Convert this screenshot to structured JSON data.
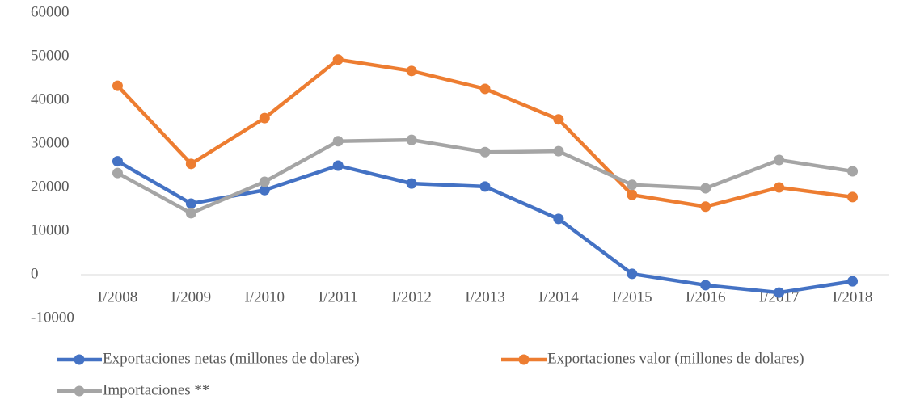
{
  "chart_data": {
    "type": "line",
    "categories": [
      "I/2008",
      "I/2009",
      "I/2010",
      "I/2011",
      "I/2012",
      "I/2013",
      "I/2014",
      "I/2015",
      "I/2016",
      "I/2017",
      "I/2018"
    ],
    "series": [
      {
        "name": "Exportaciones netas (millones de dolares)",
        "color": "#4472c4",
        "values": [
          26000,
          16300,
          19400,
          25000,
          20900,
          20200,
          12800,
          200,
          -2400,
          -4100,
          -1500
        ]
      },
      {
        "name": "Exportaciones valor (millones de dolares)",
        "color": "#ed7d31",
        "values": [
          43300,
          25400,
          35900,
          49300,
          46700,
          42600,
          35600,
          18300,
          15600,
          20000,
          17800
        ]
      },
      {
        "name": "Importaciones **",
        "color": "#a5a5a5",
        "values": [
          23300,
          14100,
          21300,
          30600,
          30900,
          28100,
          28300,
          20600,
          19800,
          26300,
          23700
        ]
      }
    ],
    "ylim": [
      -10000,
      60000
    ],
    "yticks": [
      -10000,
      0,
      10000,
      20000,
      30000,
      40000,
      50000,
      60000
    ],
    "grid": false
  }
}
